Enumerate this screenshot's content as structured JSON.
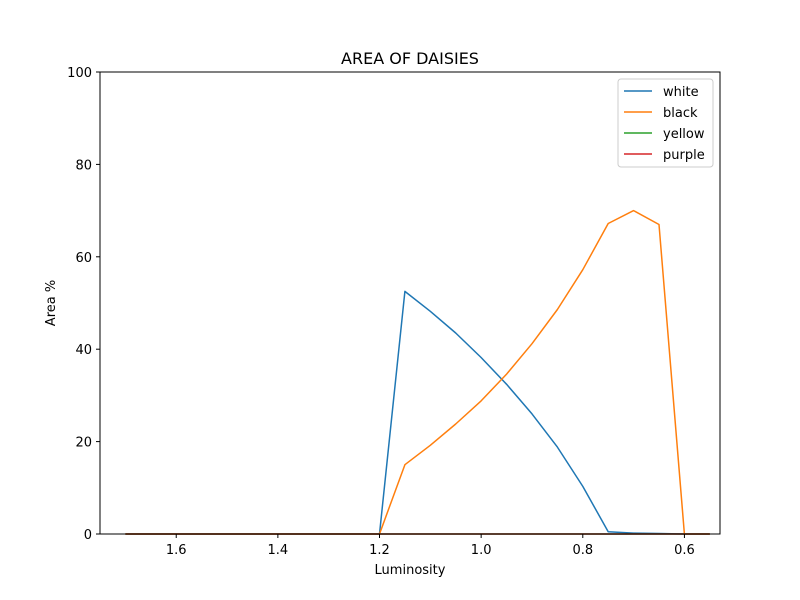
{
  "chart_data": {
    "type": "line",
    "title": "AREA OF DAISIES",
    "xlabel": "Luminosity",
    "ylabel": "Area %",
    "xlim": [
      1.75,
      0.53
    ],
    "ylim": [
      0,
      100
    ],
    "x_reversed": true,
    "grid": false,
    "legend_position": "upper right",
    "xticks": [
      1.6,
      1.4,
      1.2,
      1.0,
      0.8,
      0.6
    ],
    "xtick_labels": [
      "1.6",
      "1.4",
      "1.2",
      "1.0",
      "0.8",
      "0.6"
    ],
    "yticks": [
      0,
      20,
      40,
      60,
      80,
      100
    ],
    "ytick_labels": [
      "0",
      "20",
      "40",
      "60",
      "80",
      "100"
    ],
    "x": [
      1.7,
      1.65,
      1.6,
      1.55,
      1.5,
      1.45,
      1.4,
      1.35,
      1.3,
      1.25,
      1.2,
      1.15,
      1.1,
      1.05,
      1.0,
      0.95,
      0.9,
      0.85,
      0.8,
      0.75,
      0.7,
      0.65,
      0.6,
      0.55
    ],
    "series": [
      {
        "name": "white",
        "color": "#1f77b4",
        "values": [
          0,
          0,
          0,
          0,
          0,
          0,
          0,
          0,
          0,
          0,
          0,
          52.5,
          48.2,
          43.5,
          38.2,
          32.4,
          26.0,
          18.8,
          10.3,
          0.5,
          0.2,
          0.1,
          0,
          0
        ]
      },
      {
        "name": "black",
        "color": "#ff7f0e",
        "values": [
          0,
          0,
          0,
          0,
          0,
          0,
          0,
          0,
          0,
          0,
          0,
          15.0,
          19.2,
          23.8,
          28.8,
          34.6,
          41.2,
          48.6,
          57.2,
          67.2,
          70.0,
          67.0,
          0,
          0
        ]
      },
      {
        "name": "yellow",
        "color": "#2ca02c",
        "values": [
          0,
          0,
          0,
          0,
          0,
          0,
          0,
          0,
          0,
          0,
          0,
          0,
          0,
          0,
          0,
          0,
          0,
          0,
          0,
          0,
          0,
          0,
          0,
          0
        ]
      },
      {
        "name": "purple",
        "color": "#d62728",
        "values": [
          0,
          0,
          0,
          0,
          0,
          0,
          0,
          0,
          0,
          0,
          0,
          0,
          0,
          0,
          0,
          0,
          0,
          0,
          0,
          0,
          0,
          0,
          0,
          0
        ]
      }
    ]
  }
}
